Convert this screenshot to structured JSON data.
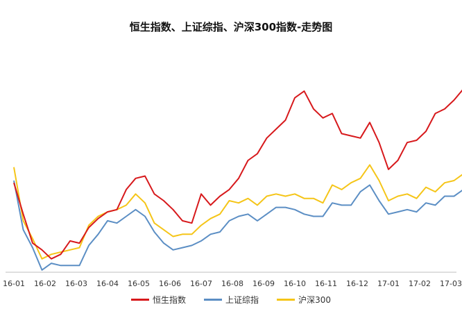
{
  "chart_data": {
    "type": "line",
    "title": "恒生指数、上证综指、沪深300指数-走势图",
    "x_tick_labels": [
      "16-01",
      "16-02",
      "16-03",
      "16-04",
      "16-05",
      "16-06",
      "16-07",
      "16-08",
      "16-09",
      "16-10",
      "16-11",
      "16-12",
      "17-01",
      "17-02",
      "17-03"
    ],
    "grid": false,
    "legend_position": "bottom-center",
    "y_axis_labels_shown": false,
    "x": [
      0,
      0.3,
      0.6,
      0.9,
      1.2,
      1.5,
      1.8,
      2.1,
      2.4,
      2.7,
      3.0,
      3.3,
      3.6,
      3.9,
      4.2,
      4.5,
      4.8,
      5.1,
      5.4,
      5.7,
      6.0,
      6.3,
      6.6,
      6.9,
      7.2,
      7.5,
      7.8,
      8.1,
      8.4,
      8.7,
      9.0,
      9.3,
      9.6,
      9.9,
      10.2,
      10.5,
      10.8,
      11.1,
      11.4,
      11.7,
      12.0,
      12.3,
      12.6,
      12.9,
      13.2,
      13.5,
      13.8,
      14.1,
      14.4,
      14.7,
      15.0
    ],
    "series": [
      {
        "name": "恒生指数",
        "color": "#d7191c",
        "values": [
          0.4,
          0.26,
          0.13,
          0.1,
          0.06,
          0.08,
          0.14,
          0.13,
          0.2,
          0.24,
          0.27,
          0.28,
          0.37,
          0.42,
          0.43,
          0.35,
          0.32,
          0.28,
          0.23,
          0.22,
          0.35,
          0.3,
          0.34,
          0.37,
          0.42,
          0.5,
          0.53,
          0.6,
          0.64,
          0.68,
          0.78,
          0.81,
          0.73,
          0.69,
          0.71,
          0.62,
          0.61,
          0.6,
          0.67,
          0.58,
          0.46,
          0.5,
          0.58,
          0.59,
          0.63,
          0.71,
          0.73,
          0.77,
          0.82,
          0.74,
          0.75
        ]
      },
      {
        "name": "上证综指",
        "color": "#5b8ec4",
        "values": [
          0.41,
          0.19,
          0.11,
          0.01,
          0.04,
          0.03,
          0.03,
          0.03,
          0.12,
          0.17,
          0.23,
          0.22,
          0.25,
          0.28,
          0.25,
          0.18,
          0.13,
          0.1,
          0.11,
          0.12,
          0.14,
          0.17,
          0.18,
          0.23,
          0.25,
          0.26,
          0.23,
          0.26,
          0.29,
          0.29,
          0.28,
          0.26,
          0.25,
          0.25,
          0.31,
          0.3,
          0.3,
          0.36,
          0.39,
          0.32,
          0.26,
          0.27,
          0.28,
          0.27,
          0.31,
          0.3,
          0.34,
          0.34,
          0.37,
          0.34,
          0.36
        ]
      },
      {
        "name": "沪深300",
        "color": "#f5c518",
        "values": [
          0.47,
          0.23,
          0.15,
          0.06,
          0.08,
          0.09,
          0.1,
          0.11,
          0.21,
          0.25,
          0.27,
          0.28,
          0.3,
          0.35,
          0.31,
          0.22,
          0.19,
          0.16,
          0.17,
          0.17,
          0.21,
          0.24,
          0.26,
          0.32,
          0.31,
          0.33,
          0.3,
          0.34,
          0.35,
          0.34,
          0.35,
          0.33,
          0.33,
          0.31,
          0.39,
          0.37,
          0.4,
          0.42,
          0.48,
          0.41,
          0.32,
          0.34,
          0.35,
          0.33,
          0.38,
          0.36,
          0.4,
          0.41,
          0.44,
          0.41,
          0.43
        ]
      }
    ]
  }
}
